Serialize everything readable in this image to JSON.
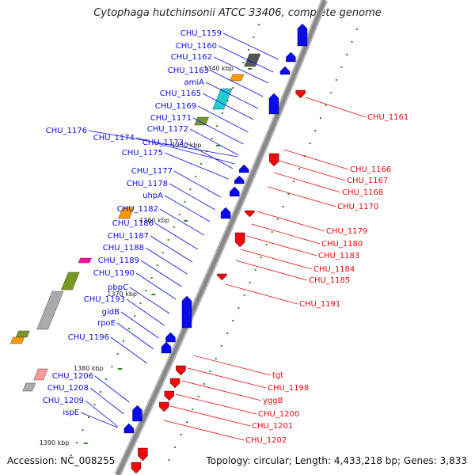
{
  "title": "Cytophaga hutchinsonii ATCC 33406, complete genome",
  "footer": {
    "accession": "Accession: NC_008255",
    "topology": "Topology: circular; Length: 4,433,218 bp; Genes: 3,833"
  },
  "colors": {
    "forward_strand": "#0a0aee",
    "reverse_strand": "#ee0a0a",
    "backbone": "#888888",
    "tick": "#2a8a2a"
  },
  "scale_ticks": [
    "1340 kbp",
    "1350 kbp",
    "1360 kbp",
    "1370 kbp",
    "1380 kbp",
    "1390 kbp"
  ],
  "genes_left": [
    "CHU_1159",
    "CHU_1160",
    "CHU_1162",
    "CHU_1163",
    "amiA",
    "CHU_1165",
    "CHU_1169",
    "CHU_1171",
    "CHU_1172",
    "CHU_1173",
    "CHU_1174",
    "CHU_1175",
    "CHU_1176",
    "CHU_1177",
    "CHU_1178",
    "uhpA",
    "CHU_1182",
    "CHU_1186",
    "CHU_1187",
    "CHU_1188",
    "CHU_1189",
    "CHU_1190",
    "pbpC",
    "CHU_1193",
    "gidB",
    "rpoE",
    "CHU_1196",
    "CHU_1206",
    "CHU_1208",
    "CHU_1209",
    "ispE"
  ],
  "genes_right": [
    "CHU_1161",
    "CHU_1166",
    "CHU_1167",
    "CHU_1168",
    "CHU_1170",
    "CHU_1179",
    "CHU_1180",
    "CHU_1183",
    "CHU_1184",
    "CHU_1185",
    "CHU_1191",
    "tgt",
    "CHU_1198",
    "yggB",
    "CHU_1200",
    "CHU_1201",
    "CHU_1202"
  ]
}
